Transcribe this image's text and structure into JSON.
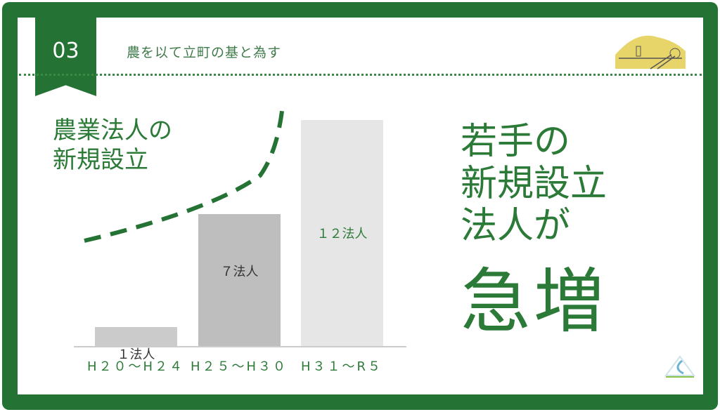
{
  "header": {
    "number": "03",
    "subtitle": "農を以て立町の基と為す"
  },
  "chart_title_lines": [
    "農業法人の",
    "新規設立"
  ],
  "chart_data": {
    "type": "bar",
    "categories": [
      "H２０〜H２４",
      "H２５〜H３０",
      "H３１〜R５"
    ],
    "values": [
      1,
      7,
      12
    ],
    "data_labels": [
      "１法人",
      "７法人",
      "１２法人"
    ],
    "unit": "法人",
    "bar_colors": [
      "#cbcbcb",
      "#bebebe",
      "#e6e6e6"
    ],
    "trend": "dashed rising curve"
  },
  "headline": {
    "lines": [
      "若手の",
      "新規設立",
      "法人が"
    ],
    "emphasis": "急増"
  },
  "colors": {
    "brand_green": "#247334",
    "text_green": "#2b7a37"
  }
}
